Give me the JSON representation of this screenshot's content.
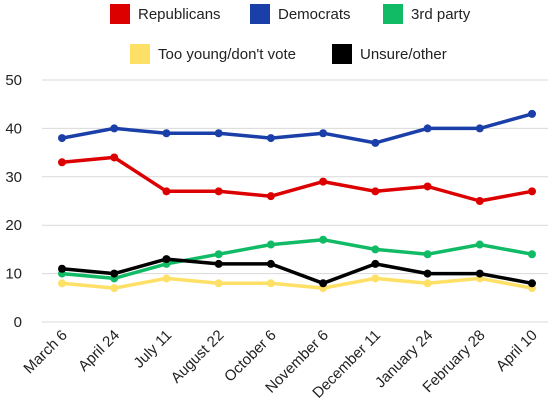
{
  "chart_data": {
    "type": "line",
    "title": "",
    "xlabel": "",
    "ylabel": "",
    "categories": [
      "March 6",
      "April 24",
      "July 11",
      "August 22",
      "October 6",
      "November 6",
      "December 11",
      "January 24",
      "February 28",
      "April 10"
    ],
    "ylim": [
      0,
      50
    ],
    "yticks": [
      0,
      10,
      20,
      30,
      40,
      50
    ],
    "grid": true,
    "legend_position": "top",
    "series": [
      {
        "name": "Republicans",
        "color": "#dd0000",
        "values": [
          33,
          34,
          27,
          27,
          26,
          29,
          27,
          28,
          25,
          27
        ]
      },
      {
        "name": "Democrats",
        "color": "#1a3fa8",
        "values": [
          38,
          40,
          39,
          39,
          38,
          39,
          37,
          40,
          40,
          43
        ]
      },
      {
        "name": "3rd party",
        "color": "#11bb66",
        "values": [
          10,
          9,
          12,
          14,
          16,
          17,
          15,
          14,
          16,
          14
        ]
      },
      {
        "name": "Too young/don't vote",
        "color": "#ffe066",
        "values": [
          8,
          7,
          9,
          8,
          8,
          7,
          9,
          8,
          9,
          7
        ]
      },
      {
        "name": "Unsure/other",
        "color": "#000000",
        "values": [
          11,
          10,
          13,
          12,
          12,
          8,
          12,
          10,
          10,
          8
        ]
      }
    ]
  }
}
